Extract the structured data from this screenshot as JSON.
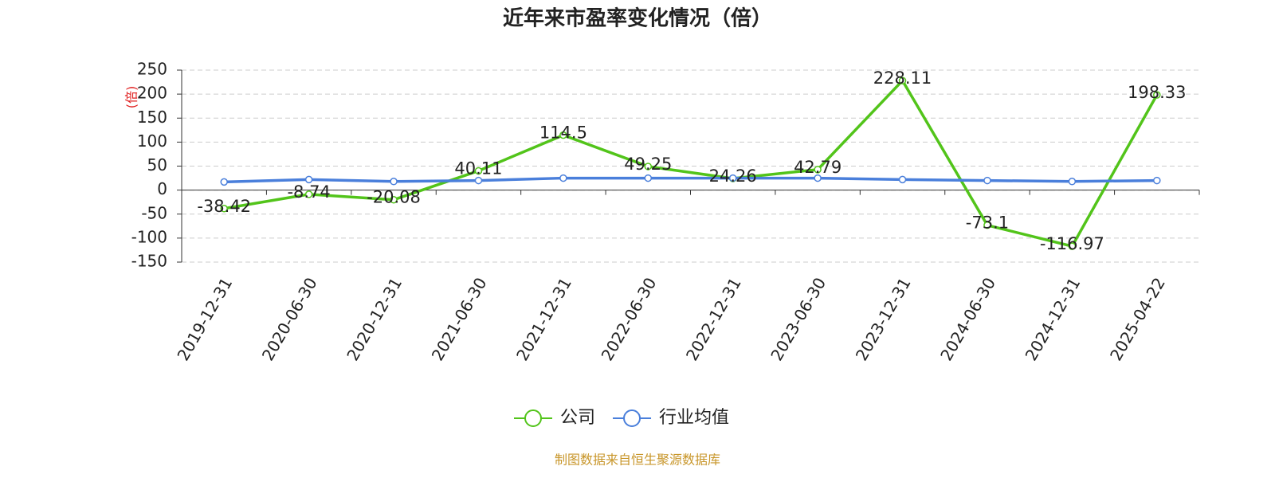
{
  "chart_data": {
    "type": "line",
    "title": "近年来市盈率变化情况（倍）",
    "y_label": "(倍)",
    "source": "制图数据来自恒生聚源数据库",
    "categories": [
      "2019-12-31",
      "2020-06-30",
      "2020-12-31",
      "2021-06-30",
      "2021-12-31",
      "2022-06-30",
      "2022-12-31",
      "2023-06-30",
      "2023-12-31",
      "2024-06-30",
      "2024-12-31",
      "2025-04-22"
    ],
    "series": [
      {
        "name": "公司",
        "color": "#52c41a",
        "values": [
          -38.42,
          -8.74,
          -20.08,
          40.11,
          114.5,
          49.25,
          24.26,
          42.79,
          228.11,
          -73.1,
          -116.97,
          198.33
        ]
      },
      {
        "name": "行业均值",
        "color": "#4a7fdb",
        "values": [
          17,
          22,
          18,
          20,
          25,
          25,
          25,
          25,
          22,
          20,
          18,
          20
        ]
      }
    ],
    "ylim": [
      -150,
      250
    ],
    "yticks": [
      250,
      200,
      150,
      100,
      50,
      0,
      -50,
      -100,
      -150
    ],
    "grid": true
  }
}
